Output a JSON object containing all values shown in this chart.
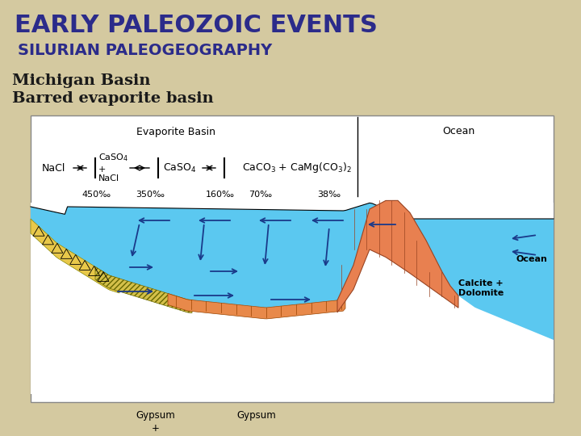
{
  "background_color": "#d4c9a0",
  "title": "EARLY PALEOZOIC EVENTS",
  "subtitle": "SILURIAN PALEOGEOGRAPHY",
  "label1": "Michigan Basin",
  "label2": "Barred evaporite basin",
  "title_color": "#2b2b8a",
  "subtitle_color": "#2b2b8a",
  "label_color": "#1a1a1a",
  "diagram_bg": "#ffffff",
  "ocean_color": "#5bc8f0",
  "halite_color": "#e8c84a",
  "gypsum_color": "#e8894a",
  "arrow_color": "#1a3a8a"
}
